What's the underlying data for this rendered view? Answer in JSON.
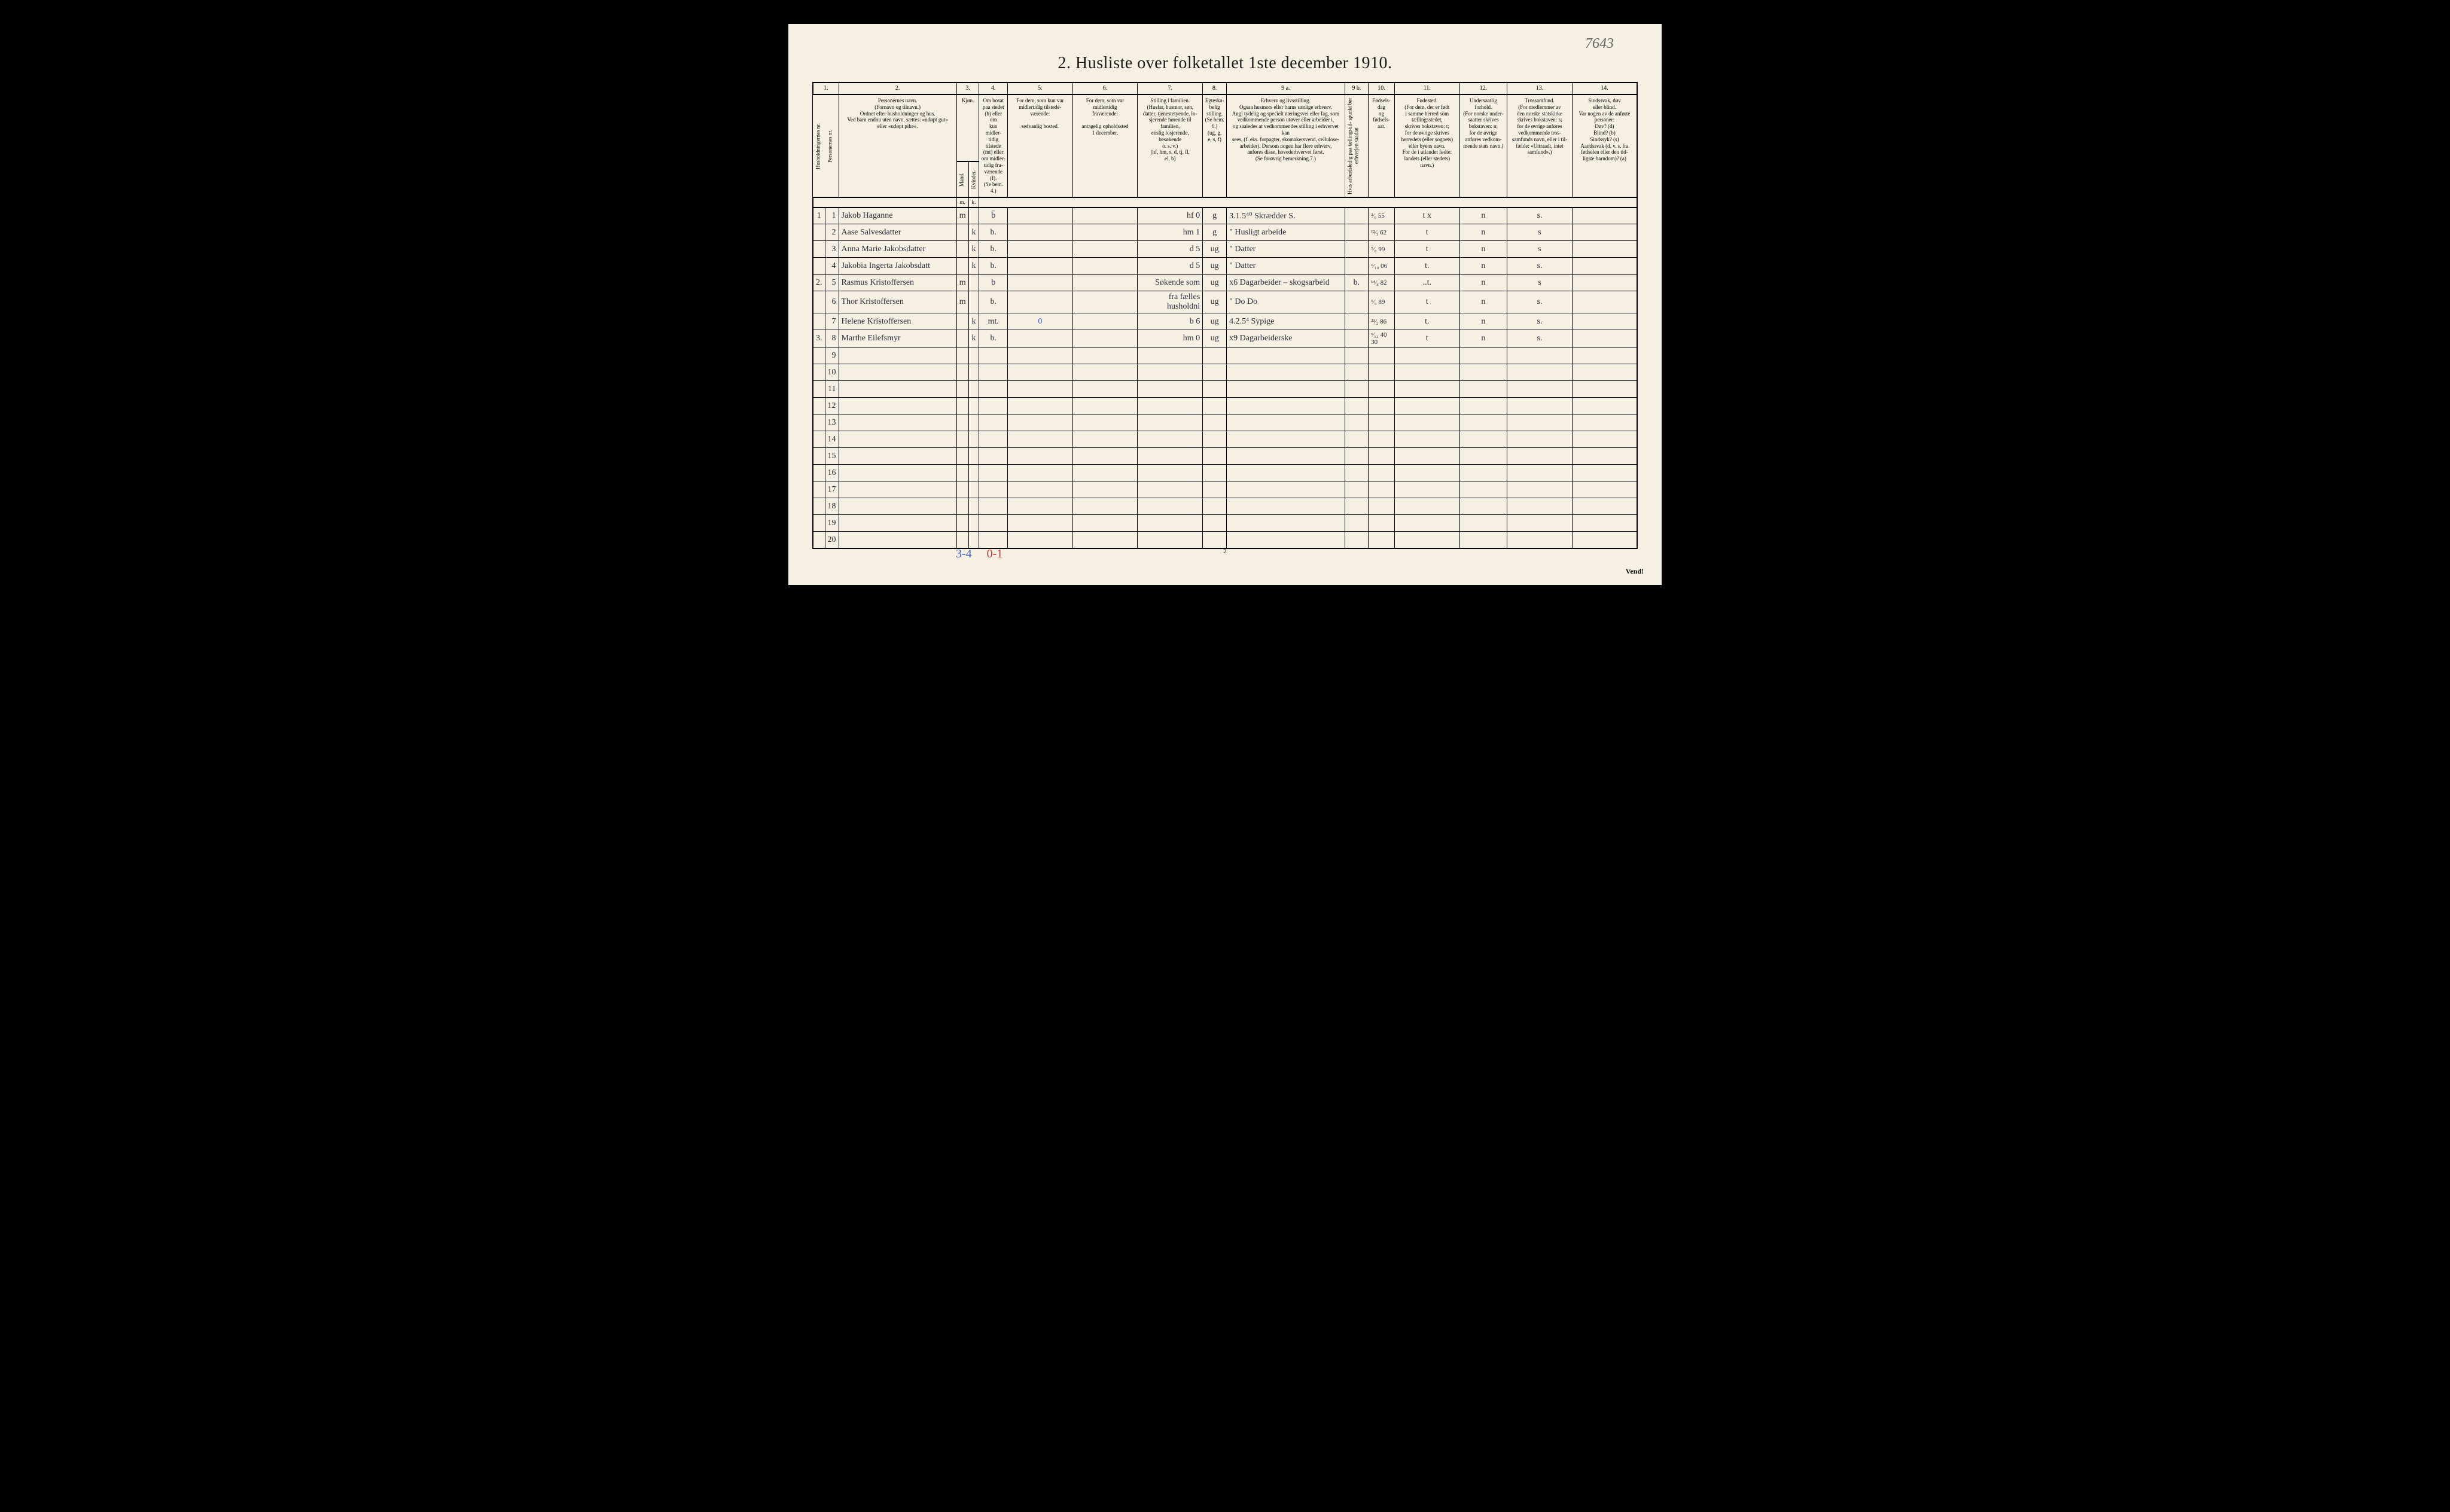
{
  "pencil_note": "7643",
  "title": "2.  Husliste over folketallet 1ste december 1910.",
  "col_numbers": [
    "1.",
    "",
    "2.",
    "3.",
    "",
    "4.",
    "5.",
    "6.",
    "7.",
    "8.",
    "9 a.",
    "9 b.",
    "10.",
    "11.",
    "12.",
    "13.",
    "14."
  ],
  "headers": {
    "h1": "Husholdningernes nr.",
    "h2": "Personernes nr.",
    "h3": "Personernes navn.\n(Fornavn og tilnavn.)\nOrdnet efter husholdninger og hus.\nVed barn endnu uten navn, sættes: «udøpt gut»\neller «udøpt pike».",
    "h4a": "Kjøn.",
    "h4b": "Mand.",
    "h4c": "Kvinder.",
    "h5": "Om bosat\npaa stedet\n(b) eller om\nkun midler-\ntidig tilstede\n(mt) eller\nom midler-\ntidig fra-\nværende (f).\n(Se bem. 4.)",
    "h6": "For dem, som kun var\nmidlertidig tilstede-\nværende:\n\nsedvanlig bosted.",
    "h7": "For dem, som var\nmidlertidig\nfraværende:\n\nantagelig opholdssted\n1 december.",
    "h8": "Stilling i familien.\n(Husfar, husmor, søn,\ndatter, tjenestetyende, lo-\nsjerende hørende til familien,\nenslig losjerende, besøkende\no. s. v.)\n(hf, hm, s, d, tj, fl,\nel, b)",
    "h9": "Egteska-\nbelig\nstilling.\n(Se bem. 6.)\n(ug, g,\ne, s, f)",
    "h10": "Erhverv og livsstilling.\nOgsaa husmors eller barns særlige erhverv.\nAngi tydelig og specielt næringsvei eller fag, som\nvedkommende person utøver eller arbeider i,\nog saaledes at vedkommendes stilling i erhvervet kan\nsees, (f. eks. forpagter, skomakersvend, cellulose-\narbeider). Dersom nogen har flere erhverv,\nanføres disse, hovederhvervet først.\n(Se forøvrig bemerkning 7.)",
    "h11": "Hvis arbeidsledig\npaa tællingstid-\nspunkt bør erhverjen saadan",
    "h12": "Fødsels-\ndag\nog\nfødsels-\naar.",
    "h13": "Fødested.\n(For dem, der er født\ni samme herred som\ntællingsstedet,\nskrives bokstaven: t;\nfor de øvrige skrives\nherredets (eller sognets)\neller byens navn.\nFor de i utlandet fødte:\nlandets (eller stedets)\nnavn.)",
    "h14": "Undersaatlig\nforhold.\n(For norske under-\nsaatter skrives\nbokstaven: n;\nfor de øvrige\nanføres vedkom-\nmende stats navn.)",
    "h15": "Trossamfund.\n(For medlemmer av\nden norske statskirke\nskrives bokstaven: s;\nfor de øvrige anføres\nvedkommende tros-\nsamfunds navn, eller i til-\nfælde: «Uttraadt, intet\nsamfund».)",
    "h16": "Sindssvak, døv\neller blind.\nVar nogen av de anførte\npersoner:\nDøv?        (d)\nBlind?       (b)\nSindssyk?  (s)\nAandssvak (d. v. s. fra\nfødselen eller den tid-\nligste barndom)?  (a)"
  },
  "rows": [
    {
      "hh": "1",
      "pn": "1",
      "name": "Jakob Haganne",
      "m": "m",
      "k": "",
      "res": "b̄",
      "c6": "",
      "c7": "",
      "fam": "hf   0",
      "eg": "g",
      "erv": "3.1.5⁴⁰ Skrædder     S.",
      "al": "",
      "dob": "²⁄₉ 55",
      "fst": "t    x",
      "nat": "n",
      "tro": "s.",
      "c16": ""
    },
    {
      "hh": "",
      "pn": "2",
      "name": "Aase Salvesdatter",
      "m": "",
      "k": "k",
      "res": "b.",
      "c6": "",
      "c7": "",
      "fam": "hm   1",
      "eg": "g",
      "erv": "\" Husligt arbeide",
      "al": "",
      "dob": "¹²⁄₃ 62",
      "fst": "t",
      "nat": "n",
      "tro": "s",
      "c16": ""
    },
    {
      "hh": "",
      "pn": "3",
      "name": "Anna Marie Jakobsdatter",
      "m": "",
      "k": "k",
      "res": "b.",
      "c6": "",
      "c7": "",
      "fam": "d    5",
      "eg": "ug",
      "erv": "\" Datter",
      "al": "",
      "dob": "⁵⁄₈ 99",
      "fst": "t",
      "nat": "n",
      "tro": "s",
      "c16": ""
    },
    {
      "hh": "",
      "pn": "4",
      "name": "Jakobia Ingerta Jakobsdatt",
      "m": "",
      "k": "k",
      "res": "b.",
      "c6": "",
      "c7": "",
      "fam": "d    5",
      "eg": "ug",
      "erv": "\" Datter",
      "al": "",
      "dob": "⁶⁄₁₀ 06",
      "fst": "t.",
      "nat": "n",
      "tro": "s.",
      "c16": ""
    },
    {
      "hh": "2.",
      "pn": "5",
      "name": "Rasmus Kristoffersen",
      "m": "m",
      "k": "",
      "res": "b",
      "c6": "",
      "c7": "",
      "fam": "Søkende som",
      "eg": "ug",
      "erv": "x6 Dagarbeider – skogsarbeid",
      "al": "b.",
      "dob": "¹⁴⁄₈ 82",
      "fst": "..t.",
      "nat": "n",
      "tro": "s",
      "c16": ""
    },
    {
      "hh": "",
      "pn": "6",
      "name": "Thor Kristoffersen",
      "m": "m",
      "k": "",
      "res": "b.",
      "c6": "",
      "c7": "",
      "fam": "fra fælles husholdni",
      "eg": "ug",
      "erv": "\"    Do              Do",
      "al": "",
      "dob": "⁶⁄₉ 89",
      "fst": "t",
      "nat": "n",
      "tro": "s.",
      "c16": ""
    },
    {
      "hh": "",
      "pn": "7",
      "name": "Helene Kristoffersen",
      "m": "",
      "k": "k",
      "res": "mt.",
      "c6": "0",
      "c7": "",
      "fam": "b    6",
      "eg": "ug",
      "erv": "4.2.5⁴ Sypige",
      "al": "",
      "dob": "²³⁄₂ 86",
      "fst": "t.",
      "nat": "n",
      "tro": "s.",
      "c16": ""
    },
    {
      "hh": "3.",
      "pn": "8",
      "name": "Marthe Eilefsmyr",
      "m": "",
      "k": "k",
      "res": "b.",
      "c6": "",
      "c7": "",
      "fam": "hm   0",
      "eg": "ug",
      "erv": "x9  Dagarbeiderske",
      "al": "",
      "dob": "ˣ⁄₁₂ 40\n30",
      "fst": "t",
      "nat": "n",
      "tro": "s.",
      "c16": ""
    }
  ],
  "empty_rows": [
    9,
    10,
    11,
    12,
    13,
    14,
    15,
    16,
    17,
    18,
    19,
    20
  ],
  "footer_blue": "3-4",
  "footer_red": "0-1",
  "page_num": "2",
  "vend": "Vend!",
  "colors": {
    "page_bg": "#f5f0e1",
    "ink": "#1a1a1a",
    "handwriting": "#2a2a3a",
    "blue": "#3a5fcd",
    "red": "#cc3333",
    "pencil": "#666666"
  }
}
